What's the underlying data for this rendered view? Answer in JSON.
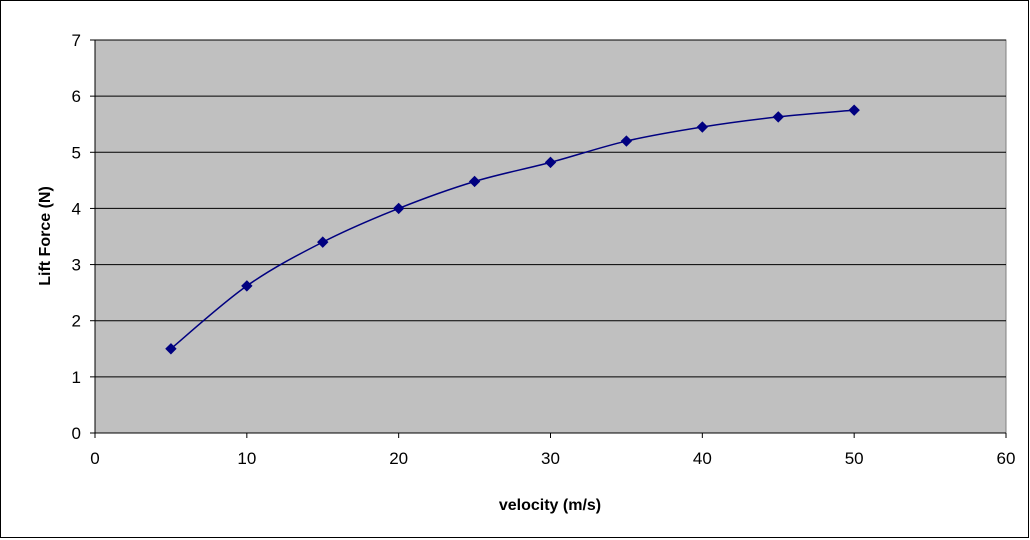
{
  "chart_data": {
    "type": "line",
    "title": "",
    "xlabel": "velocity (m/s)",
    "ylabel": "Lift Force (N)",
    "xlim": [
      0,
      60
    ],
    "ylim": [
      0,
      7
    ],
    "x_ticks": [
      0,
      10,
      20,
      30,
      40,
      50,
      60
    ],
    "y_ticks": [
      0,
      1,
      2,
      3,
      4,
      5,
      6,
      7
    ],
    "grid": "horizontal",
    "legend": "none",
    "series": [
      {
        "x": [
          5,
          10,
          15,
          20,
          25,
          30,
          35,
          40,
          45,
          50
        ],
        "values": [
          1.5,
          2.62,
          3.4,
          4.0,
          4.48,
          4.82,
          5.2,
          5.45,
          5.63,
          5.75
        ],
        "color": "#000080",
        "marker": "diamond",
        "smooth": true
      }
    ],
    "colors": {
      "plot_background": "#c0c0c0",
      "gridline": "#000000",
      "series": "#000080"
    }
  }
}
